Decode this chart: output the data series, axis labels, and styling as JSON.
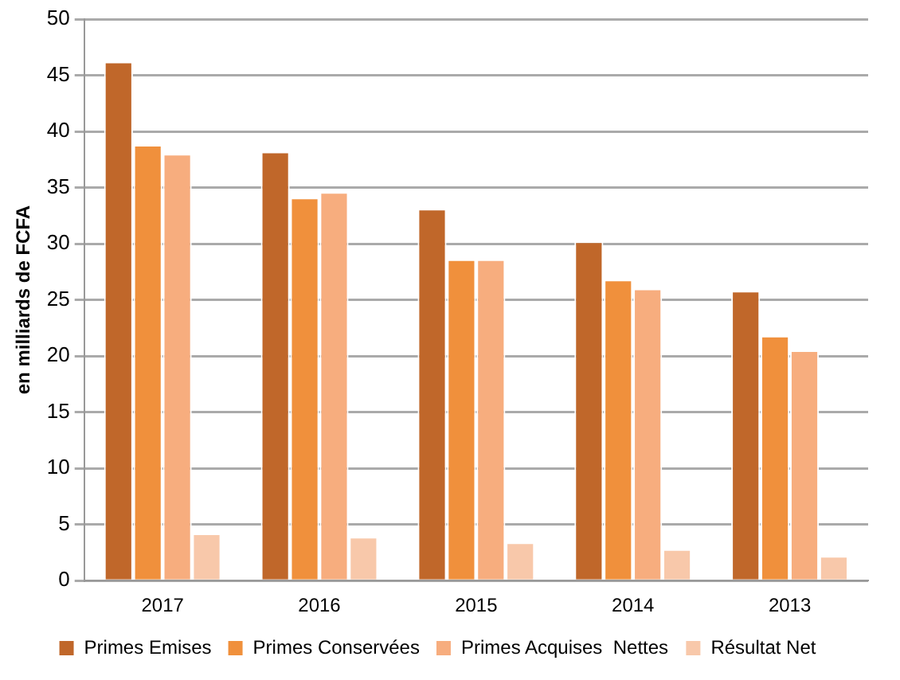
{
  "chart_data": {
    "type": "bar",
    "ylabel": "en milliards de FCFA",
    "categories": [
      "2017",
      "2016",
      "2015",
      "2014",
      "2013"
    ],
    "series": [
      {
        "name": "Primes Emises",
        "color": "#c0672a",
        "values": [
          46.2,
          38.2,
          33.1,
          30.2,
          25.8
        ]
      },
      {
        "name": "Primes Conservées",
        "color": "#f0903c",
        "values": [
          38.8,
          34.1,
          28.6,
          26.8,
          21.8
        ]
      },
      {
        "name": "Primes Acquises  Nettes",
        "color": "#f7ad7e",
        "values": [
          38,
          34.6,
          28.6,
          26,
          20.5
        ]
      },
      {
        "name": "Résultat Net",
        "color": "#f8c8aa",
        "values": [
          4.2,
          3.9,
          3.4,
          2.8,
          2.2
        ]
      }
    ],
    "ylim": [
      0,
      50
    ],
    "yticks": [
      0,
      5,
      10,
      15,
      20,
      25,
      30,
      35,
      40,
      45,
      50
    ],
    "grid": "y",
    "legend": "bottom"
  }
}
